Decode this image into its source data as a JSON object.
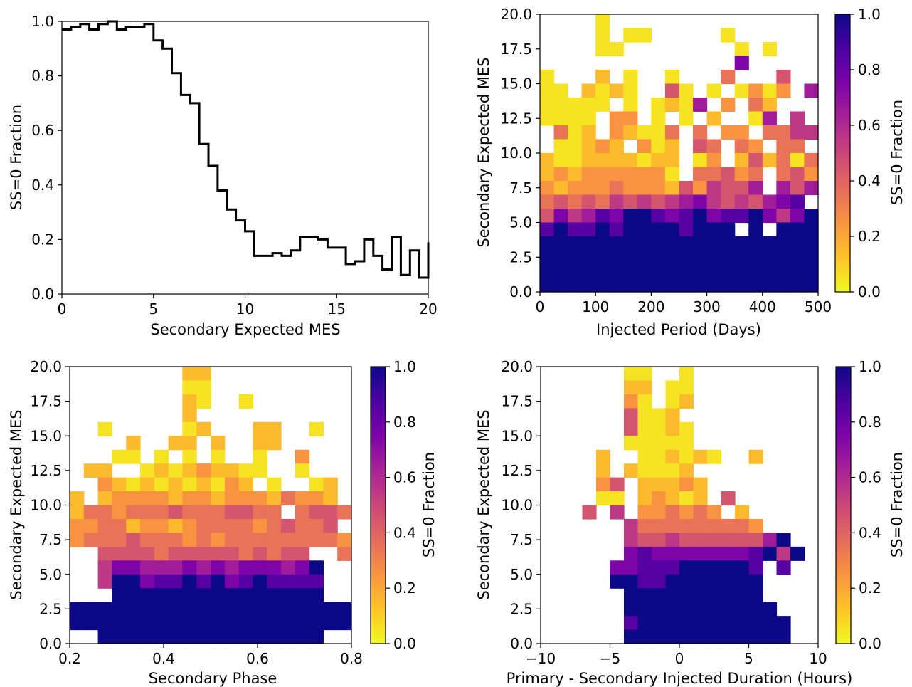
{
  "chart_data": [
    {
      "type": "line",
      "drawstyle": "steps",
      "xlabel": "Secondary Expected MES",
      "ylabel": "SS=0 Fraction",
      "xlim": [
        0,
        20
      ],
      "ylim": [
        0,
        1.0
      ],
      "xticks": [
        "0",
        "5",
        "10",
        "15",
        "20"
      ],
      "yticks": [
        "0.0",
        "0.2",
        "0.4",
        "0.6",
        "0.8",
        "1.0"
      ],
      "bin_width": 0.5,
      "bin_start": 0.0,
      "values": [
        0.97,
        0.98,
        0.99,
        0.97,
        0.99,
        1.0,
        0.97,
        0.98,
        0.98,
        0.99,
        0.93,
        0.9,
        0.81,
        0.73,
        0.7,
        0.55,
        0.47,
        0.38,
        0.31,
        0.27,
        0.23,
        0.14,
        0.14,
        0.15,
        0.14,
        0.16,
        0.21,
        0.21,
        0.2,
        0.17,
        0.17,
        0.11,
        0.12,
        0.2,
        0.14,
        0.09,
        0.21,
        0.07,
        0.16,
        0.06,
        0.19
      ],
      "color": "#000000"
    },
    {
      "type": "heatmap",
      "xlabel": "Injected Period (Days)",
      "ylabel": "Secondary Expected MES",
      "colorbar_label": "SS=0 Fraction",
      "xlim": [
        0,
        500
      ],
      "ylim": [
        0,
        20
      ],
      "xticks": [
        "0",
        "100",
        "200",
        "300",
        "400",
        "500"
      ],
      "yticks": [
        "0.0",
        "2.5",
        "5.0",
        "7.5",
        "10.0",
        "12.5",
        "15.0",
        "17.5",
        "20.0"
      ],
      "cbar_ticks": [
        "0.0",
        "0.2",
        "0.4",
        "0.6",
        "0.8",
        "1.0"
      ],
      "nx": 20,
      "ny": 20,
      "colormap": "plasma_r",
      "grid_rows_top_to_bottom": [
        "....0...............",
        "....0.00.....0......",
        "....00........0.0...",
        "..............7.....",
        "0...1.0..0...3...4..",
        "00.1010..40.0.0202.6",
        "00000.0.0106.2.31...",
        "0000.22.0.0.1..06.5.",
        ".301.21003.3.22.3355",
        ".00121.201.43.32.33.",
        "1001111011.02.141303",
        "1212222220.33423.342",
        "2122232221425446.646",
        "3434354545675454678.",
        "47568799878978897579",
        "89889899998999.9.999",
        "99999999999999999999",
        "99999999999999999999",
        "99999999999999999999",
        "99999999999999999999"
      ]
    },
    {
      "type": "heatmap",
      "xlabel": "Secondary Phase",
      "ylabel": "Secondary Expected MES",
      "colorbar_label": "SS=0 Fraction",
      "xlim": [
        0.2,
        0.8
      ],
      "ylim": [
        0,
        20
      ],
      "xticks": [
        "0.2",
        "0.4",
        "0.6",
        "0.8"
      ],
      "yticks": [
        "0.0",
        "2.5",
        "5.0",
        "7.5",
        "10.0",
        "12.5",
        "15.0",
        "17.5",
        "20.0"
      ],
      "cbar_ticks": [
        "0.0",
        "0.2",
        "0.4",
        "0.6",
        "0.8",
        "1.0"
      ],
      "nx": 20,
      "ny": 20,
      "colormap": "plasma_r",
      "grid_rows_top_to_bottom": [
        "........11..........",
        "........00..........",
        "........10..0.......",
        "........1...........",
        "..0.....01...11..0..",
        "....1..11.1..11.....",
        "...00.0.0.0..0..2...",
        ".11..010121100..0...",
        "..21010101021.0..01.",
        "1.12222122122213221.",
        "133233343334433.3443",
        "2233122123333234334.",
        "23334333232333333332",
        "..444434444434344..3",
        "..5776667676777679..",
        "..5997889897898888..",
        "...999999999999999..",
        "99999999999999999999",
        "99999999999999999999",
        "..9999999999999999.."
      ]
    },
    {
      "type": "heatmap",
      "xlabel": "Primary - Secondary Injected Duration (Hours)",
      "ylabel": "Secondary Expected MES",
      "colorbar_label": "SS=0 Fraction",
      "xlim": [
        -10,
        10
      ],
      "ylim": [
        0,
        20
      ],
      "xticks": [
        "−10",
        "−5",
        "0",
        "5",
        "10"
      ],
      "yticks": [
        "0.0",
        "2.5",
        "5.0",
        "7.5",
        "10.0",
        "12.5",
        "15.0",
        "17.5",
        "20.0"
      ],
      "cbar_ticks": [
        "0.0",
        "0.2",
        "0.4",
        "0.6",
        "0.8",
        "1.0"
      ],
      "nx": 20,
      "ny": 20,
      "colormap": "plasma_r",
      "grid_rows_top_to_bottom": [
        "......00..0.........",
        "......11.00.........",
        "......20.01.........",
        "......4001..........",
        "......40010.........",
        "......00000.........",
        "....1..001010..1....",
        "....1.10001.........",
        "....24.11121........",
        "....00.12101.4......",
        "...4.5.223232.1.....",
        "......5333333332....",
        "......544544444469..",
        "......7877777778959.",
        ".....77888999998.8..",
        ".....99889999999....",
        "......9999999999....",
        "......99999999999...",
        "......899999999999..",
        "......999999999999.."
      ]
    }
  ]
}
